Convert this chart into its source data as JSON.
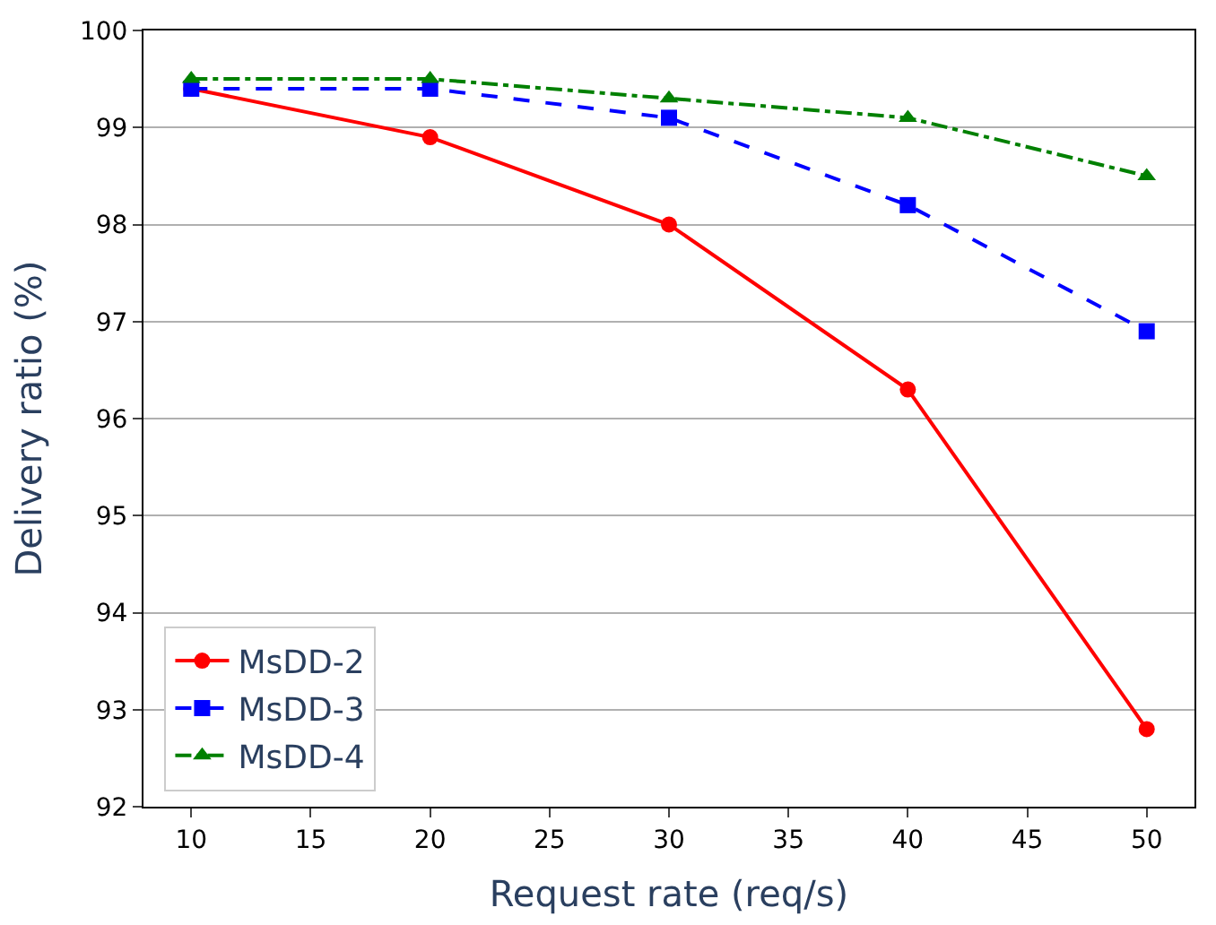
{
  "chart_data": {
    "type": "line",
    "xlabel": "Request rate (req/s)",
    "ylabel": "Delivery ratio (%)",
    "x": [
      10,
      20,
      30,
      40,
      50
    ],
    "series": [
      {
        "name": "MsDD-2",
        "color": "#ff0000",
        "marker": "circle",
        "line_style": "solid",
        "values": [
          99.4,
          98.9,
          98.0,
          96.3,
          92.8
        ]
      },
      {
        "name": "MsDD-3",
        "color": "#0000ff",
        "marker": "square",
        "line_style": "dashed",
        "values": [
          99.4,
          99.4,
          99.1,
          98.2,
          96.9
        ]
      },
      {
        "name": "MsDD-4",
        "color": "#008000",
        "marker": "triangle",
        "line_style": "dashdot",
        "values": [
          99.5,
          99.5,
          99.3,
          99.1,
          98.5
        ]
      }
    ],
    "xlim": [
      8,
      52
    ],
    "xticks": [
      10,
      15,
      20,
      25,
      30,
      35,
      40,
      45,
      50
    ],
    "ylim": [
      92,
      100
    ],
    "yticks": [
      92,
      93,
      94,
      95,
      96,
      97,
      98,
      99,
      100
    ],
    "grid": "y",
    "legend": "bottom left"
  }
}
